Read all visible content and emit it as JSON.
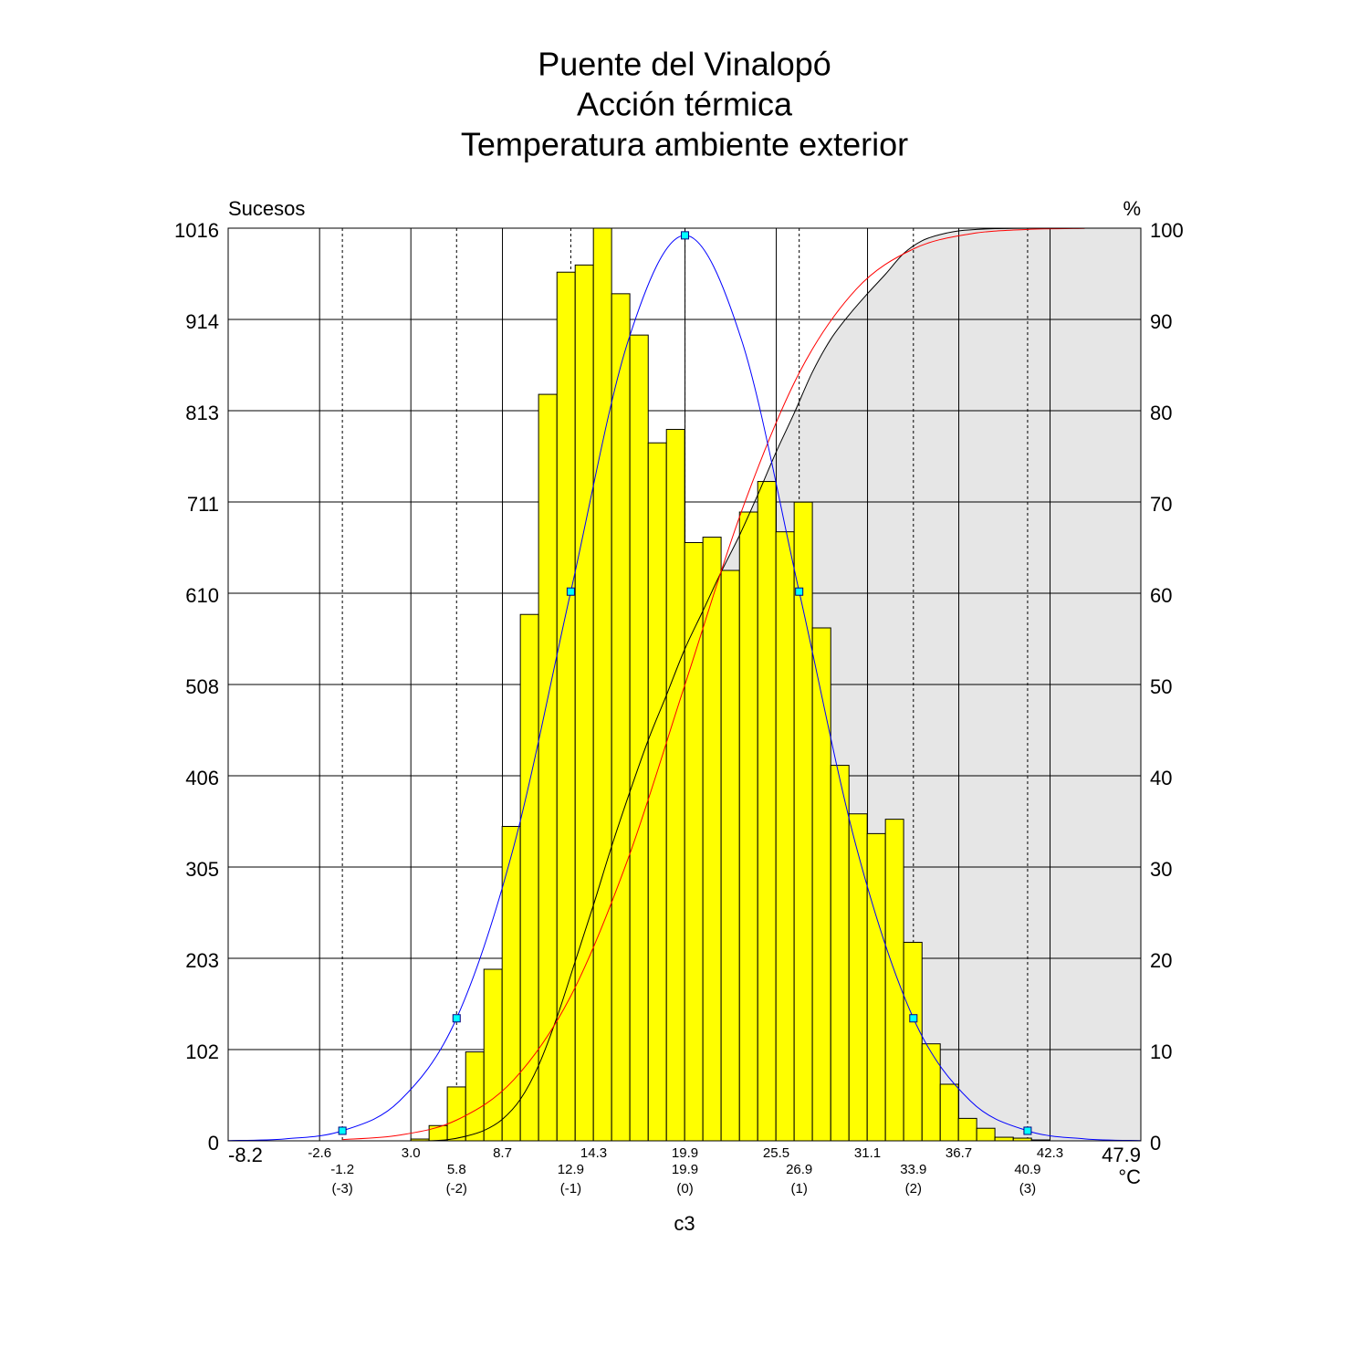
{
  "chart_data": {
    "type": "histogram",
    "title": [
      "Puente del Vinalopó",
      "Acción térmica",
      "Temperatura ambiente exterior"
    ],
    "y_label": "Sucesos",
    "y2_label": "%",
    "x_unit": "°C",
    "x_label": "c3",
    "color": "#ffff00",
    "grid": true,
    "bins": [
      3.03,
      4.15,
      5.27,
      6.4,
      7.52,
      8.64,
      9.76,
      10.88,
      12.01,
      13.13,
      14.25,
      15.37,
      16.49,
      17.62,
      18.74,
      19.86,
      20.98,
      22.1,
      23.23,
      24.35,
      25.47,
      26.59,
      27.71,
      28.84,
      29.96,
      31.08,
      32.2,
      33.32,
      34.45,
      35.57,
      36.69,
      37.81,
      38.93,
      40.06,
      41.18,
      42.3
    ],
    "values": [
      2,
      17,
      60,
      99,
      191,
      350,
      586,
      831,
      967,
      975,
      1016,
      943,
      897,
      777,
      792,
      666,
      672,
      635,
      700,
      734,
      678,
      711,
      571,
      418,
      364,
      342,
      358,
      221,
      108,
      63,
      25,
      14,
      4,
      3,
      1
    ],
    "xlim": [
      -8.2,
      47.9
    ],
    "xticks": [
      {
        "value": -2.58,
        "label": "-2.6"
      },
      {
        "value": 3.03,
        "label": "3.0"
      },
      {
        "value": 8.66,
        "label": "8.7"
      },
      {
        "value": 14.27,
        "label": "14.3"
      },
      {
        "value": 19.88,
        "label": "19.9"
      },
      {
        "value": 25.49,
        "label": "25.5"
      },
      {
        "value": 31.1,
        "label": "31.1"
      },
      {
        "value": 36.71,
        "label": "36.7"
      },
      {
        "value": 42.32,
        "label": "42.3"
      }
    ],
    "sigma_ticks": [
      {
        "value": -1.18,
        "label": "-1.2"
      },
      {
        "value": 5.84,
        "label": "5.8"
      },
      {
        "value": 12.86,
        "label": "12.9"
      },
      {
        "value": 19.88,
        "label": "19.9"
      },
      {
        "value": 26.9,
        "label": "26.9"
      },
      {
        "value": 33.92,
        "label": "33.9"
      },
      {
        "value": 40.94,
        "label": "40.9"
      }
    ],
    "sigma_labels": [
      "(-3)",
      "(-2)",
      "(-1)",
      "(0)",
      "(1)",
      "(2)",
      "(3)"
    ],
    "ylim": [
      0,
      1016
    ],
    "yticks": [
      0,
      {
        "value": 101.6,
        "label": "102"
      },
      {
        "value": 203.2,
        "label": "203"
      },
      {
        "value": 304.8,
        "label": "305"
      },
      {
        "value": 406.4,
        "label": "406"
      },
      {
        "value": 508,
        "label": "508"
      },
      {
        "value": 609.6,
        "label": "610"
      },
      {
        "value": 711.2,
        "label": "711"
      },
      {
        "value": 812.8,
        "label": "813"
      },
      {
        "value": 914.4,
        "label": "914"
      },
      1016
    ],
    "y2lim": [
      0,
      100
    ],
    "y2ticks": [
      0,
      10,
      20,
      30,
      40,
      50,
      60,
      70,
      80,
      90,
      100
    ],
    "overlays": [
      {
        "type": "area",
        "axis": "y2",
        "color": "#000000",
        "fill": "#e6e6e6",
        "x": [
          3.03,
          4.15,
          5.27,
          6.4,
          7.52,
          8.64,
          9.76,
          10.88,
          12.01,
          13.13,
          14.25,
          15.37,
          16.49,
          17.62,
          18.74,
          19.86,
          20.98,
          22.1,
          23.23,
          24.35,
          25.47,
          26.59,
          27.71,
          28.84,
          29.96,
          31.08,
          32.2,
          33.32,
          34.45,
          35.57,
          36.69,
          37.81,
          38.93,
          40.06,
          41.18,
          42.3
        ],
        "values": [
          0,
          0.01,
          0.12,
          0.5,
          1.13,
          2.34,
          4.55,
          8.26,
          13.53,
          19.65,
          25.82,
          32.26,
          38.23,
          43.91,
          48.83,
          53.85,
          58.06,
          62.32,
          66.34,
          70.77,
          75.42,
          79.72,
          84.22,
          87.83,
          90.48,
          92.79,
          94.95,
          97.22,
          98.62,
          99.3,
          99.7,
          99.86,
          99.95,
          99.97,
          99.99,
          100
        ]
      },
      {
        "type": "line",
        "axis": "y2",
        "color": "#ff0000",
        "x": [
          -1.18,
          2.33,
          5.84,
          9.35,
          12.86,
          16.37,
          19.88,
          23.39,
          26.9,
          30.41,
          33.92,
          37.43,
          40.94,
          44.45
        ],
        "values": [
          0.135,
          0.621,
          2.275,
          6.681,
          15.866,
          30.854,
          50,
          69.146,
          84.134,
          93.319,
          97.725,
          99.379,
          99.865,
          99.977
        ]
      },
      {
        "type": "line",
        "axis": "y",
        "color": "#0000ff",
        "x": [
          -8.2,
          -4.69,
          -1.18,
          2.33,
          5.84,
          9.35,
          12.86,
          16.37,
          19.88,
          23.39,
          26.9,
          30.41,
          33.92,
          37.43,
          40.94,
          44.45,
          47.9
        ],
        "values": [
          0.3,
          2.2,
          11.2,
          44.3,
          136.4,
          327.3,
          611.4,
          889.6,
          1008,
          889.6,
          611.4,
          327.3,
          136.4,
          44.3,
          11.2,
          2.2,
          0.3
        ]
      },
      {
        "type": "markers",
        "axis": "y",
        "color": "#00ffff",
        "x": [
          -1.18,
          5.84,
          12.86,
          19.88,
          26.9,
          33.92,
          40.94
        ],
        "values": [
          11.2,
          136.4,
          611.4,
          1008,
          611.4,
          136.4,
          11.2
        ]
      }
    ]
  }
}
